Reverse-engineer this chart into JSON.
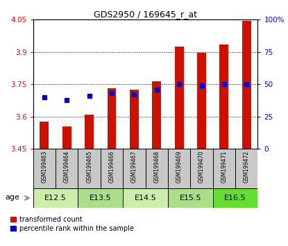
{
  "title": "GDS2950 / 169645_r_at",
  "samples": [
    "GSM199463",
    "GSM199464",
    "GSM199465",
    "GSM199466",
    "GSM199467",
    "GSM199468",
    "GSM199469",
    "GSM199470",
    "GSM199471",
    "GSM199472"
  ],
  "red_values": [
    3.575,
    3.555,
    3.61,
    3.73,
    3.725,
    3.765,
    3.925,
    3.895,
    3.935,
    4.045
  ],
  "blue_values": [
    40,
    38,
    41,
    43,
    42,
    46,
    50,
    49,
    50,
    50
  ],
  "ylim_left": [
    3.45,
    4.05
  ],
  "ylim_right": [
    0,
    100
  ],
  "yticks_left": [
    3.45,
    3.6,
    3.75,
    3.9,
    4.05
  ],
  "yticks_right": [
    0,
    25,
    50,
    75,
    100
  ],
  "ytick_labels_left": [
    "3.45",
    "3.6",
    "3.75",
    "3.9",
    "4.05"
  ],
  "ytick_labels_right": [
    "0",
    "25",
    "50",
    "75",
    "100%"
  ],
  "bar_color": "#cc1100",
  "dot_color": "#0000cc",
  "age_groups": [
    {
      "label": "E12.5",
      "samples": [
        0,
        1
      ],
      "color": "#cceeaa"
    },
    {
      "label": "E13.5",
      "samples": [
        2,
        3
      ],
      "color": "#aade88"
    },
    {
      "label": "E14.5",
      "samples": [
        4,
        5
      ],
      "color": "#cceeaa"
    },
    {
      "label": "E15.5",
      "samples": [
        6,
        7
      ],
      "color": "#aade88"
    },
    {
      "label": "E16.5",
      "samples": [
        8,
        9
      ],
      "color": "#66dd33"
    }
  ],
  "legend_red_label": "transformed count",
  "legend_blue_label": "percentile rank within the sample",
  "bg_color": "#ffffff",
  "sample_box_color": "#c8c8c8",
  "age_label": "age",
  "bar_width": 0.4
}
